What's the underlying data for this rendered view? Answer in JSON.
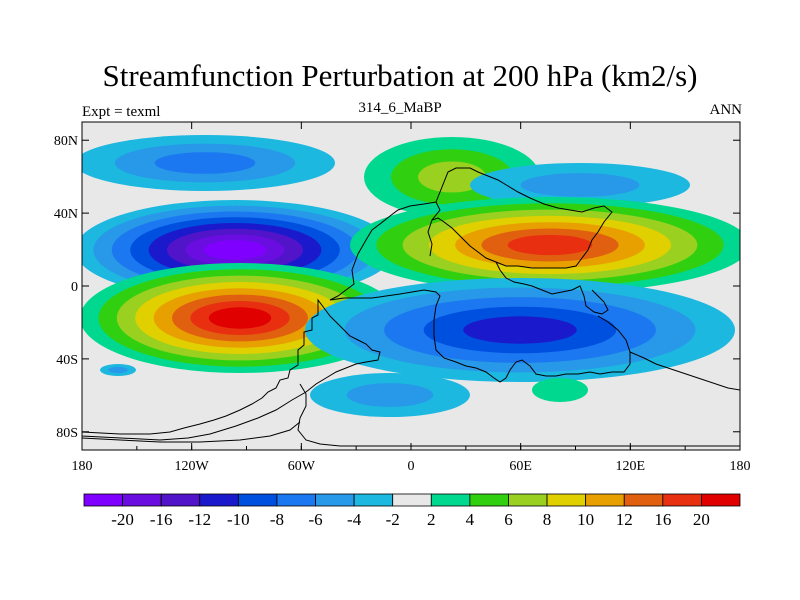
{
  "title": "Streamfunction Perturbation at 200 hPa (km2/s)",
  "subtitle_left": "Expt = texml",
  "subtitle_center": "314_6_MaBP",
  "subtitle_right": "ANN",
  "chart_data": {
    "type": "contour-map",
    "variable": "Streamfunction Perturbation",
    "level": "200 hPa",
    "units": "km2/s",
    "x_ticks": [
      "180",
      "120W",
      "60W",
      "0",
      "60E",
      "120E",
      "180"
    ],
    "y_ticks": [
      "80N",
      "40N",
      "0",
      "40S",
      "80S"
    ],
    "xlim": [
      -180,
      180
    ],
    "ylim": [
      -90,
      90
    ],
    "colorbar": {
      "levels": [
        -20,
        -16,
        -12,
        -10,
        -8,
        -6,
        -4,
        -2,
        2,
        4,
        6,
        8,
        10,
        12,
        16,
        20
      ],
      "labels": [
        "-20",
        "-16",
        "-12",
        "-10",
        "-8",
        "-6",
        "-4",
        "-2",
        "2",
        "4",
        "6",
        "8",
        "10",
        "12",
        "16",
        "20"
      ],
      "colors": [
        "#8000ff",
        "#6a0de0",
        "#5214c8",
        "#1a1acc",
        "#0050e0",
        "#1c78f0",
        "#2898e8",
        "#1cb8e0",
        "#e8e8e8",
        "#00d890",
        "#30d010",
        "#9ad020",
        "#e0d000",
        "#e8a000",
        "#e06010",
        "#e83010",
        "#e00000"
      ]
    }
  }
}
